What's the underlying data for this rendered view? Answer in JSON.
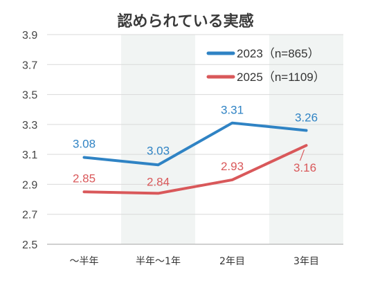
{
  "chart_data": {
    "type": "line",
    "title": "認められている実感",
    "categories": [
      "〜半年",
      "半年〜1年",
      "2年目",
      "3年目"
    ],
    "ylim": [
      2.5,
      3.9
    ],
    "yticks": [
      "2.5",
      "2.7",
      "2.9",
      "3.1",
      "3.3",
      "3.5",
      "3.7",
      "3.9"
    ],
    "grid": true,
    "legend_position": "top-right",
    "series": [
      {
        "name": "2023（n=865）",
        "color": "#2f83c4",
        "values": [
          3.08,
          3.03,
          3.31,
          3.26
        ],
        "labels": [
          "3.08",
          "3.03",
          "3.31",
          "3.26"
        ]
      },
      {
        "name": "2025（n=1109）",
        "color": "#d9585a",
        "values": [
          2.85,
          2.84,
          2.93,
          3.16
        ],
        "labels": [
          "2.85",
          "2.84",
          "2.93",
          "3.16"
        ]
      }
    ]
  }
}
